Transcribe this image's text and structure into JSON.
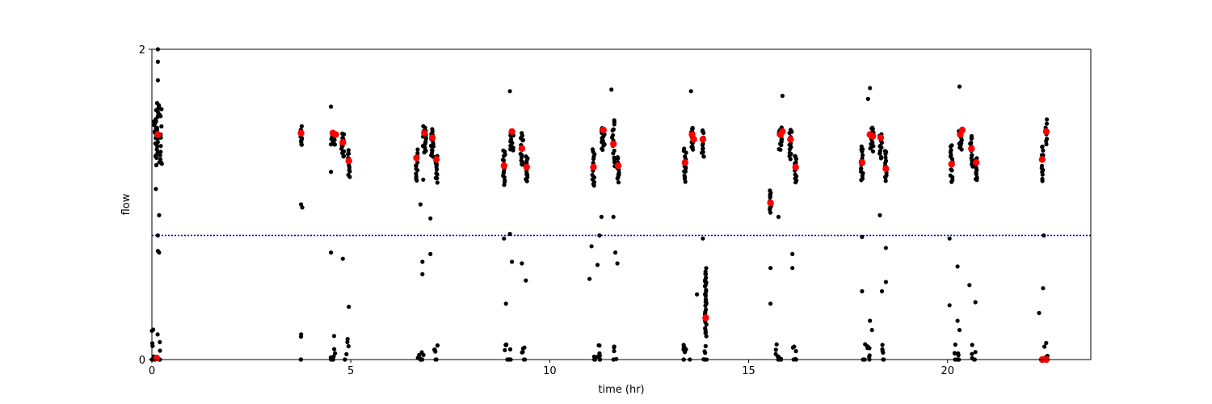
{
  "chart_data": {
    "type": "scatter",
    "title": "",
    "xlabel": "time (hr)",
    "ylabel": "flow",
    "xlim": [
      0,
      23.6
    ],
    "ylim": [
      0,
      2
    ],
    "x_ticks": [
      0,
      5,
      10,
      15,
      20
    ],
    "y_ticks": [
      0,
      2
    ],
    "grid": false,
    "legend": "none",
    "threshold_line": {
      "y": 0.8,
      "color": "#0000cc",
      "style": "dotted"
    },
    "colors": {
      "raw": "#000000",
      "highlight": "#ff0000",
      "threshold": "#0000cc"
    },
    "clusters": [
      {
        "x": 0.15,
        "spread": 0.2,
        "ymin": 1.25,
        "ymax": 1.65,
        "n": 45
      },
      {
        "x": 3.75,
        "spread": 0.05,
        "ymin": 1.38,
        "ymax": 1.5,
        "n": 14
      },
      {
        "x": 4.55,
        "spread": 0.1,
        "ymin": 1.38,
        "ymax": 1.45,
        "n": 14
      },
      {
        "x": 4.8,
        "spread": 0.07,
        "ymin": 1.3,
        "ymax": 1.46,
        "n": 14
      },
      {
        "x": 4.95,
        "spread": 0.05,
        "ymin": 1.18,
        "ymax": 1.35,
        "n": 12
      },
      {
        "x": 6.65,
        "spread": 0.06,
        "ymin": 1.15,
        "ymax": 1.35,
        "n": 14
      },
      {
        "x": 6.85,
        "spread": 0.09,
        "ymin": 1.33,
        "ymax": 1.5,
        "n": 16
      },
      {
        "x": 7.05,
        "spread": 0.07,
        "ymin": 1.3,
        "ymax": 1.48,
        "n": 16
      },
      {
        "x": 7.15,
        "spread": 0.05,
        "ymin": 1.15,
        "ymax": 1.32,
        "n": 14
      },
      {
        "x": 8.85,
        "spread": 0.06,
        "ymin": 1.12,
        "ymax": 1.35,
        "n": 16
      },
      {
        "x": 9.05,
        "spread": 0.09,
        "ymin": 1.35,
        "ymax": 1.48,
        "n": 16
      },
      {
        "x": 9.3,
        "spread": 0.07,
        "ymin": 1.25,
        "ymax": 1.46,
        "n": 16
      },
      {
        "x": 9.42,
        "spread": 0.05,
        "ymin": 1.15,
        "ymax": 1.3,
        "n": 14
      },
      {
        "x": 11.1,
        "spread": 0.06,
        "ymin": 1.12,
        "ymax": 1.35,
        "n": 16
      },
      {
        "x": 11.35,
        "spread": 0.09,
        "ymin": 1.35,
        "ymax": 1.5,
        "n": 16
      },
      {
        "x": 11.6,
        "spread": 0.07,
        "ymin": 1.25,
        "ymax": 1.55,
        "n": 16
      },
      {
        "x": 11.72,
        "spread": 0.05,
        "ymin": 1.15,
        "ymax": 1.3,
        "n": 14
      },
      {
        "x": 13.4,
        "spread": 0.06,
        "ymin": 1.15,
        "ymax": 1.35,
        "n": 16
      },
      {
        "x": 13.58,
        "spread": 0.07,
        "ymin": 1.35,
        "ymax": 1.5,
        "n": 14
      },
      {
        "x": 13.85,
        "spread": 0.06,
        "ymin": 1.3,
        "ymax": 1.48,
        "n": 14
      },
      {
        "x": 15.55,
        "spread": 0.05,
        "ymin": 0.95,
        "ymax": 1.08,
        "n": 14
      },
      {
        "x": 15.8,
        "spread": 0.08,
        "ymin": 1.35,
        "ymax": 1.5,
        "n": 14
      },
      {
        "x": 16.05,
        "spread": 0.07,
        "ymin": 1.3,
        "ymax": 1.48,
        "n": 14
      },
      {
        "x": 16.18,
        "spread": 0.05,
        "ymin": 1.15,
        "ymax": 1.32,
        "n": 14
      },
      {
        "x": 17.85,
        "spread": 0.06,
        "ymin": 1.15,
        "ymax": 1.38,
        "n": 16
      },
      {
        "x": 18.1,
        "spread": 0.09,
        "ymin": 1.35,
        "ymax": 1.5,
        "n": 16
      },
      {
        "x": 18.32,
        "spread": 0.06,
        "ymin": 1.3,
        "ymax": 1.45,
        "n": 14
      },
      {
        "x": 18.45,
        "spread": 0.05,
        "ymin": 1.15,
        "ymax": 1.35,
        "n": 14
      },
      {
        "x": 20.1,
        "spread": 0.06,
        "ymin": 1.15,
        "ymax": 1.38,
        "n": 16
      },
      {
        "x": 20.32,
        "spread": 0.08,
        "ymin": 1.35,
        "ymax": 1.48,
        "n": 16
      },
      {
        "x": 20.6,
        "spread": 0.07,
        "ymin": 1.25,
        "ymax": 1.45,
        "n": 14
      },
      {
        "x": 20.72,
        "spread": 0.05,
        "ymin": 1.15,
        "ymax": 1.3,
        "n": 12
      },
      {
        "x": 22.38,
        "spread": 0.06,
        "ymin": 1.15,
        "ymax": 1.38,
        "n": 14
      },
      {
        "x": 22.48,
        "spread": 0.04,
        "ymin": 1.38,
        "ymax": 1.55,
        "n": 8
      },
      {
        "x": 13.92,
        "spread": 0.04,
        "ymin": 0.16,
        "ymax": 0.58,
        "n": 34
      }
    ],
    "zero_stacks": [
      {
        "x": 0.1,
        "spread": 0.25,
        "ymax": 0.2,
        "n": 14
      },
      {
        "x": 3.75,
        "spread": 0.02,
        "ymax": 0.18,
        "n": 4
      },
      {
        "x": 4.55,
        "spread": 0.12,
        "ymax": 0.16,
        "n": 9
      },
      {
        "x": 4.9,
        "spread": 0.1,
        "ymax": 0.14,
        "n": 6
      },
      {
        "x": 6.75,
        "spread": 0.18,
        "ymax": 0.1,
        "n": 10
      },
      {
        "x": 7.15,
        "spread": 0.1,
        "ymax": 0.1,
        "n": 6
      },
      {
        "x": 8.95,
        "spread": 0.18,
        "ymax": 0.1,
        "n": 10
      },
      {
        "x": 9.35,
        "spread": 0.1,
        "ymax": 0.1,
        "n": 6
      },
      {
        "x": 11.2,
        "spread": 0.18,
        "ymax": 0.1,
        "n": 10
      },
      {
        "x": 11.65,
        "spread": 0.1,
        "ymax": 0.1,
        "n": 6
      },
      {
        "x": 13.45,
        "spread": 0.18,
        "ymax": 0.1,
        "n": 10
      },
      {
        "x": 13.9,
        "spread": 0.1,
        "ymax": 0.1,
        "n": 6
      },
      {
        "x": 15.75,
        "spread": 0.18,
        "ymax": 0.1,
        "n": 10
      },
      {
        "x": 16.15,
        "spread": 0.1,
        "ymax": 0.1,
        "n": 6
      },
      {
        "x": 17.95,
        "spread": 0.18,
        "ymax": 0.1,
        "n": 10
      },
      {
        "x": 18.4,
        "spread": 0.1,
        "ymax": 0.1,
        "n": 6
      },
      {
        "x": 20.25,
        "spread": 0.18,
        "ymax": 0.1,
        "n": 10
      },
      {
        "x": 20.65,
        "spread": 0.1,
        "ymax": 0.1,
        "n": 6
      },
      {
        "x": 22.45,
        "spread": 0.12,
        "ymax": 0.12,
        "n": 8
      }
    ],
    "outliers": [
      {
        "x": 0.15,
        "y": 2.0
      },
      {
        "x": 0.15,
        "y": 1.92
      },
      {
        "x": 0.15,
        "y": 1.8
      },
      {
        "x": 0.1,
        "y": 1.1
      },
      {
        "x": 0.18,
        "y": 0.93
      },
      {
        "x": 0.15,
        "y": 0.8
      },
      {
        "x": 0.15,
        "y": 0.7
      },
      {
        "x": 0.18,
        "y": 0.69
      },
      {
        "x": 3.75,
        "y": 1.0
      },
      {
        "x": 3.78,
        "y": 0.98
      },
      {
        "x": 4.5,
        "y": 1.21
      },
      {
        "x": 4.5,
        "y": 0.69
      },
      {
        "x": 4.5,
        "y": 1.63
      },
      {
        "x": 4.8,
        "y": 0.65
      },
      {
        "x": 4.95,
        "y": 0.34
      },
      {
        "x": 6.75,
        "y": 1.0
      },
      {
        "x": 6.8,
        "y": 0.63
      },
      {
        "x": 6.8,
        "y": 0.55
      },
      {
        "x": 6.82,
        "y": 1.16
      },
      {
        "x": 7.0,
        "y": 0.91
      },
      {
        "x": 7.0,
        "y": 0.68
      },
      {
        "x": 8.9,
        "y": 0.36
      },
      {
        "x": 8.85,
        "y": 0.78
      },
      {
        "x": 9.0,
        "y": 0.81
      },
      {
        "x": 9.05,
        "y": 0.63
      },
      {
        "x": 9.0,
        "y": 1.73
      },
      {
        "x": 9.3,
        "y": 0.62
      },
      {
        "x": 9.4,
        "y": 0.51
      },
      {
        "x": 11.0,
        "y": 0.52
      },
      {
        "x": 11.05,
        "y": 0.73
      },
      {
        "x": 11.2,
        "y": 0.61
      },
      {
        "x": 11.25,
        "y": 0.8
      },
      {
        "x": 11.3,
        "y": 0.92
      },
      {
        "x": 11.6,
        "y": 0.92
      },
      {
        "x": 11.65,
        "y": 0.69
      },
      {
        "x": 11.7,
        "y": 0.62
      },
      {
        "x": 11.55,
        "y": 1.74
      },
      {
        "x": 13.55,
        "y": 1.73
      },
      {
        "x": 13.7,
        "y": 0.42
      },
      {
        "x": 13.85,
        "y": 0.78
      },
      {
        "x": 15.55,
        "y": 0.59
      },
      {
        "x": 15.55,
        "y": 0.36
      },
      {
        "x": 15.75,
        "y": 0.92
      },
      {
        "x": 15.85,
        "y": 1.7
      },
      {
        "x": 16.1,
        "y": 0.68
      },
      {
        "x": 16.1,
        "y": 0.59
      },
      {
        "x": 17.85,
        "y": 0.79
      },
      {
        "x": 17.85,
        "y": 0.44
      },
      {
        "x": 18.05,
        "y": 0.25
      },
      {
        "x": 18.1,
        "y": 0.19
      },
      {
        "x": 18.05,
        "y": 1.75
      },
      {
        "x": 18.0,
        "y": 1.68
      },
      {
        "x": 18.3,
        "y": 0.93
      },
      {
        "x": 18.35,
        "y": 0.44
      },
      {
        "x": 18.45,
        "y": 0.72
      },
      {
        "x": 18.45,
        "y": 0.5
      },
      {
        "x": 20.05,
        "y": 0.78
      },
      {
        "x": 20.05,
        "y": 0.35
      },
      {
        "x": 20.25,
        "y": 0.6
      },
      {
        "x": 20.25,
        "y": 0.25
      },
      {
        "x": 20.3,
        "y": 0.19
      },
      {
        "x": 20.3,
        "y": 1.76
      },
      {
        "x": 20.55,
        "y": 0.48
      },
      {
        "x": 20.7,
        "y": 0.37
      },
      {
        "x": 22.3,
        "y": 0.3
      },
      {
        "x": 22.4,
        "y": 0.46
      },
      {
        "x": 22.42,
        "y": 0.8
      }
    ],
    "highlight_points": [
      {
        "x": 0.15,
        "y": 1.45
      },
      {
        "x": 0.12,
        "y": 0.01
      },
      {
        "x": 3.75,
        "y": 1.46
      },
      {
        "x": 4.55,
        "y": 1.46
      },
      {
        "x": 4.62,
        "y": 1.45
      },
      {
        "x": 4.8,
        "y": 1.4
      },
      {
        "x": 4.95,
        "y": 1.28
      },
      {
        "x": 6.65,
        "y": 1.3
      },
      {
        "x": 6.85,
        "y": 1.46
      },
      {
        "x": 7.05,
        "y": 1.43
      },
      {
        "x": 7.15,
        "y": 1.29
      },
      {
        "x": 8.85,
        "y": 1.25
      },
      {
        "x": 9.05,
        "y": 1.47
      },
      {
        "x": 9.3,
        "y": 1.36
      },
      {
        "x": 9.42,
        "y": 1.24
      },
      {
        "x": 11.1,
        "y": 1.24
      },
      {
        "x": 11.35,
        "y": 1.48
      },
      {
        "x": 11.6,
        "y": 1.39
      },
      {
        "x": 11.72,
        "y": 1.25
      },
      {
        "x": 13.4,
        "y": 1.27
      },
      {
        "x": 13.58,
        "y": 1.45
      },
      {
        "x": 13.62,
        "y": 1.42
      },
      {
        "x": 13.85,
        "y": 1.42
      },
      {
        "x": 13.92,
        "y": 0.27
      },
      {
        "x": 15.55,
        "y": 1.01
      },
      {
        "x": 15.8,
        "y": 1.45
      },
      {
        "x": 15.85,
        "y": 1.47
      },
      {
        "x": 16.05,
        "y": 1.42
      },
      {
        "x": 16.18,
        "y": 1.24
      },
      {
        "x": 17.85,
        "y": 1.27
      },
      {
        "x": 18.05,
        "y": 1.45
      },
      {
        "x": 18.12,
        "y": 1.44
      },
      {
        "x": 18.32,
        "y": 1.43
      },
      {
        "x": 18.45,
        "y": 1.23
      },
      {
        "x": 20.1,
        "y": 1.26
      },
      {
        "x": 20.32,
        "y": 1.45
      },
      {
        "x": 20.37,
        "y": 1.48
      },
      {
        "x": 20.6,
        "y": 1.36
      },
      {
        "x": 20.72,
        "y": 1.27
      },
      {
        "x": 22.38,
        "y": 1.29
      },
      {
        "x": 22.48,
        "y": 1.47
      },
      {
        "x": 22.38,
        "y": 0.0
      },
      {
        "x": 22.48,
        "y": 0.0
      }
    ]
  }
}
